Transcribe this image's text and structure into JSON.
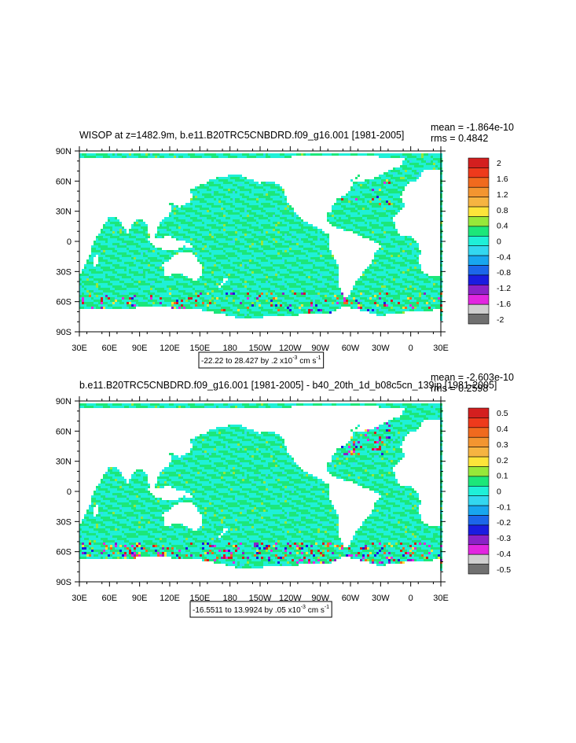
{
  "chart_data": [
    {
      "type": "heatmap",
      "title": "WISOP at z=1482.9m, b.e11.B20TRC5CNBDRD.f09_g16.001 [1981-2005]",
      "stats": [
        "mean = -1.864e-10",
        "rms = 0.4842"
      ],
      "x_ticks": [
        "30E",
        "60E",
        "90E",
        "120E",
        "150E",
        "180",
        "150W",
        "120W",
        "90W",
        "60W",
        "30W",
        "0",
        "30E"
      ],
      "y_ticks": [
        "90N",
        "60N",
        "30N",
        "0",
        "30S",
        "60S",
        "90S"
      ],
      "range_label_main": "-22.22 to 28.427 by .2 x10",
      "range_label_exp": "-3",
      "range_label_unit": " cm s",
      "range_label_unit_exp": "-1",
      "colorbar_labels": [
        "2",
        "1.6",
        "1.2",
        "0.8",
        "0.4",
        "0",
        "-0.4",
        "-0.8",
        "-1.2",
        "-1.6",
        "-2"
      ],
      "colorbar_values": [
        2,
        1.6,
        1.2,
        0.8,
        0.4,
        0,
        -0.4,
        -0.8,
        -1.2,
        -1.6,
        -2
      ],
      "colors": [
        "#d41f1f",
        "#ee3a1c",
        "#f06a1e",
        "#f39530",
        "#f6b441",
        "#fde43a",
        "#97e83a",
        "#1ce77a",
        "#1ff0d8",
        "#33d7f0",
        "#18a6ef",
        "#1c66ea",
        "#1b1ce0",
        "#8b22c8",
        "#e226e0",
        "#cfcfcf",
        "#707070"
      ],
      "intensity": 1.0
    },
    {
      "type": "heatmap",
      "title": "b.e11.B20TRC5CNBDRD.f09_g16.001 [1981-2005] - b40_20th_1d_b08c5cn_139jp [1981-2005]",
      "stats": [
        "mean = -2.603e-10",
        "rms = 0.2598"
      ],
      "x_ticks": [
        "30E",
        "60E",
        "90E",
        "120E",
        "150E",
        "180",
        "150W",
        "120W",
        "90W",
        "60W",
        "30W",
        "0",
        "30E"
      ],
      "y_ticks": [
        "90N",
        "60N",
        "30N",
        "0",
        "30S",
        "60S",
        "90S"
      ],
      "range_label_main": "-16.5511 to 13.9924 by .05 x10",
      "range_label_exp": "-3",
      "range_label_unit": " cm s",
      "range_label_unit_exp": "-1",
      "colorbar_labels": [
        "0.5",
        "0.4",
        "0.3",
        "0.2",
        "0.1",
        "0",
        "-0.1",
        "-0.2",
        "-0.3",
        "-0.4",
        "-0.5"
      ],
      "colorbar_values": [
        0.5,
        0.4,
        0.3,
        0.2,
        0.1,
        0,
        -0.1,
        -0.2,
        -0.3,
        -0.4,
        -0.5
      ],
      "colors": [
        "#d41f1f",
        "#ee3a1c",
        "#f06a1e",
        "#f39530",
        "#f6b441",
        "#fde43a",
        "#97e83a",
        "#1ce77a",
        "#1ff0d8",
        "#33d7f0",
        "#18a6ef",
        "#1c66ea",
        "#1b1ce0",
        "#8b22c8",
        "#e226e0",
        "#cfcfcf",
        "#707070"
      ],
      "intensity": 1.6
    }
  ]
}
